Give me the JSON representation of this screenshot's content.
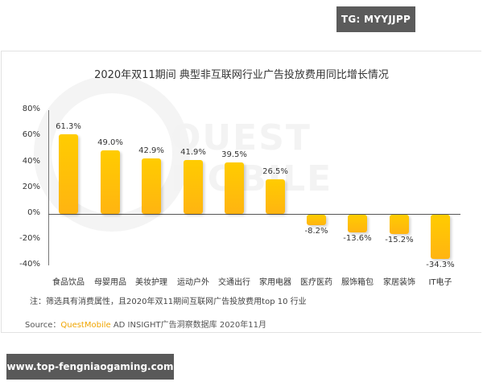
{
  "badge": {
    "text": "TG: MYYJJPP"
  },
  "footer": {
    "url": "www.top-fengniaogaming.com"
  },
  "watermark": {
    "text": "QUEST MOBILE"
  },
  "chart_data": {
    "type": "bar",
    "title": "2020年双11期间 典型非互联网行业广告投放费用同比增长情况",
    "xlabel": "",
    "ylabel": "",
    "ylim": [
      -40,
      80
    ],
    "yticks": [
      "80%",
      "60%",
      "40%",
      "20%",
      "0%",
      "-20%",
      "-40%"
    ],
    "categories": [
      "食品饮品",
      "母婴用品",
      "美妆护理",
      "运动户外",
      "交通出行",
      "家用电器",
      "医疗医药",
      "服饰箱包",
      "家居装饰",
      "IT电子"
    ],
    "values": [
      61.3,
      49.0,
      42.9,
      41.9,
      39.5,
      26.5,
      -8.2,
      -13.6,
      -15.2,
      -34.3
    ],
    "value_labels": [
      "61.3%",
      "49.0%",
      "42.9%",
      "41.9%",
      "39.5%",
      "26.5%",
      "-8.2%",
      "-13.6%",
      "-15.2%",
      "-34.3%"
    ],
    "bar_color": "#ffc107",
    "grid": false,
    "legend": null
  },
  "note": "注：筛选具有消费属性，且2020年双11期间互联网广告投放费用top 10 行业",
  "source": {
    "prefix": "Source：",
    "brand": "QuestMobile",
    "rest": " AD INSIGHT广告洞察数据库 2020年11月"
  }
}
